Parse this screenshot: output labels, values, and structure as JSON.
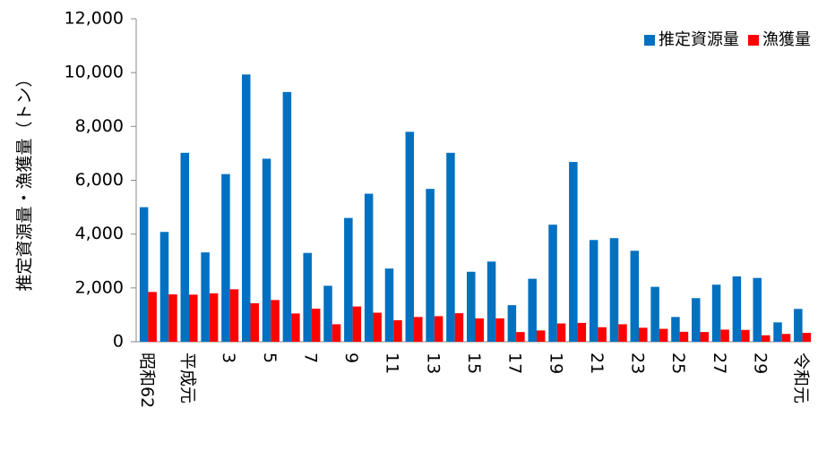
{
  "chart_data": {
    "type": "bar",
    "y_label": "推定資源量・漁獲量（トン）",
    "categories": [
      "昭和62",
      null,
      "平成元",
      null,
      "3",
      null,
      "5",
      null,
      "7",
      null,
      "9",
      null,
      "11",
      null,
      "13",
      null,
      "15",
      null,
      "17",
      null,
      "19",
      null,
      "21",
      null,
      "23",
      null,
      "25",
      null,
      "27",
      null,
      "29",
      null,
      "令和元"
    ],
    "series": [
      {
        "name": "推定資源量",
        "color": "#0070c0",
        "values": [
          5000,
          4080,
          7020,
          3320,
          6230,
          9930,
          6800,
          9280,
          3300,
          2080,
          4600,
          5500,
          2720,
          7800,
          5680,
          7020,
          2600,
          2980,
          1360,
          2340,
          4350,
          6680,
          3780,
          3850,
          3380,
          2040,
          920,
          1620,
          2120,
          2430,
          2370,
          720,
          1220
        ]
      },
      {
        "name": "漁獲量",
        "color": "#ff0000",
        "values": [
          1850,
          1760,
          1750,
          1800,
          1950,
          1430,
          1550,
          1050,
          1230,
          650,
          1310,
          1080,
          800,
          920,
          950,
          1060,
          870,
          870,
          360,
          420,
          680,
          700,
          540,
          650,
          520,
          480,
          370,
          360,
          450,
          440,
          240,
          290,
          330
        ]
      }
    ],
    "ylim": [
      0,
      12000
    ],
    "yticks": [
      0,
      {
        "value": 2000,
        "label": "2,000"
      },
      {
        "value": 4000,
        "label": "4,000"
      },
      {
        "value": 6000,
        "label": "6,000"
      },
      {
        "value": 8000,
        "label": "8,000"
      },
      {
        "value": 10000,
        "label": "10,000"
      },
      {
        "value": 12000,
        "label": "12,000"
      }
    ],
    "legend": "top-right"
  }
}
